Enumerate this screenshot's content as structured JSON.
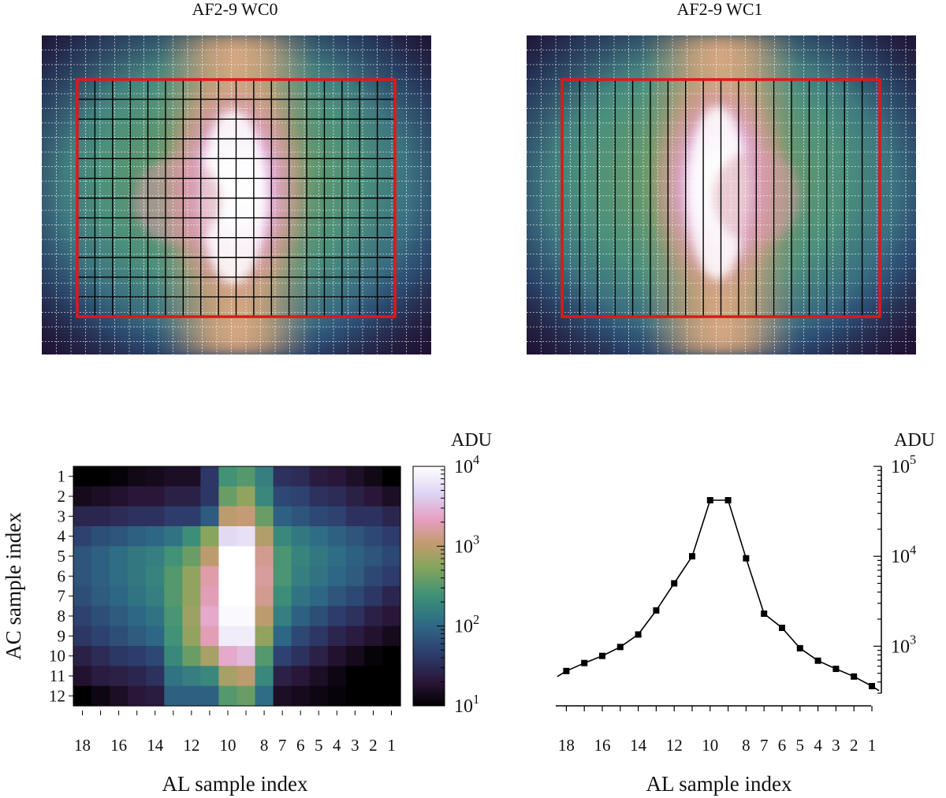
{
  "panels": {
    "top_left_title": "AF2-9 WC0",
    "top_right_title": "AF2-9 WC1"
  },
  "colors": {
    "window_outline": "#e01818",
    "grid_line": "#000000",
    "pixel_grid": "#ffffff",
    "line_series": "#000000"
  },
  "chart_data": [
    {
      "type": "heatmap",
      "title": "AF2-9 WC0",
      "description_key": "top-left smooth image with 18x12 sample grid",
      "grid": {
        "columns": 18,
        "rows": 12
      },
      "window_shape": "2D"
    },
    {
      "type": "heatmap",
      "title": "AF2-9 WC1",
      "description_key": "top-right smooth image with 18 AL-binned columns",
      "grid": {
        "columns": 18,
        "rows": 1
      },
      "window_shape": "1D"
    },
    {
      "type": "heatmap",
      "xlabel": "AL sample index",
      "ylabel": "AC sample index",
      "x_ticks": [
        "18",
        "16",
        "14",
        "12",
        "10",
        "8",
        "7",
        "6",
        "5",
        "4",
        "3",
        "2",
        "1"
      ],
      "x_tick_positions": [
        18,
        16,
        14,
        12,
        10,
        8,
        7,
        6,
        5,
        4,
        3,
        2,
        1
      ],
      "y_ticks": [
        "1",
        "2",
        "3",
        "4",
        "5",
        "6",
        "7",
        "8",
        "9",
        "10",
        "11",
        "12"
      ],
      "colorbar": {
        "label": "ADU",
        "scale": "log",
        "range": [
          10,
          10000
        ],
        "ticks": [
          {
            "base": "10",
            "exp": "1",
            "value": 10
          },
          {
            "base": "10",
            "exp": "2",
            "value": 100
          },
          {
            "base": "10",
            "exp": "3",
            "value": 1000
          },
          {
            "base": "10",
            "exp": "4",
            "value": 10000
          }
        ]
      },
      "al_indices": [
        18,
        17,
        16,
        15,
        14,
        13,
        12,
        11,
        10,
        9,
        8,
        7,
        6,
        5,
        4,
        3,
        2,
        1
      ],
      "values_log10": [
        [
          1.0,
          1.0,
          1.05,
          1.12,
          1.15,
          1.2,
          1.2,
          1.6,
          2.4,
          2.5,
          2.2,
          1.55,
          1.5,
          1.35,
          1.3,
          1.22,
          1.12,
          1.0
        ],
        [
          1.15,
          1.2,
          1.25,
          1.3,
          1.3,
          1.4,
          1.4,
          1.6,
          2.6,
          2.8,
          2.3,
          1.75,
          1.7,
          1.55,
          1.5,
          1.4,
          1.3,
          1.2
        ],
        [
          1.45,
          1.45,
          1.5,
          1.55,
          1.55,
          1.65,
          1.65,
          1.9,
          3.0,
          3.05,
          2.6,
          1.95,
          1.85,
          1.75,
          1.7,
          1.55,
          1.55,
          1.45
        ],
        [
          1.7,
          1.8,
          1.85,
          1.95,
          2.0,
          2.1,
          2.35,
          2.75,
          3.7,
          3.75,
          2.95,
          2.3,
          2.15,
          2.05,
          1.95,
          1.85,
          1.75,
          1.65
        ],
        [
          1.85,
          1.95,
          2.05,
          2.15,
          2.2,
          2.4,
          2.6,
          3.0,
          4.0,
          4.0,
          3.15,
          2.45,
          2.25,
          2.15,
          2.05,
          1.95,
          1.85,
          1.75
        ],
        [
          1.85,
          1.95,
          2.05,
          2.15,
          2.25,
          2.5,
          2.8,
          3.25,
          4.0,
          4.0,
          3.2,
          2.45,
          2.2,
          2.1,
          2.0,
          1.9,
          1.75,
          1.65
        ],
        [
          1.8,
          1.9,
          2.0,
          2.1,
          2.2,
          2.5,
          2.8,
          3.3,
          4.0,
          4.0,
          3.15,
          2.35,
          2.1,
          2.0,
          1.85,
          1.75,
          1.6,
          1.45
        ],
        [
          1.7,
          1.8,
          1.9,
          2.0,
          2.1,
          2.45,
          2.85,
          3.4,
          3.95,
          3.95,
          3.0,
          2.2,
          1.95,
          1.8,
          1.65,
          1.55,
          1.4,
          1.3
        ],
        [
          1.6,
          1.7,
          1.8,
          1.9,
          2.0,
          2.4,
          2.8,
          3.3,
          3.85,
          3.85,
          2.8,
          2.0,
          1.75,
          1.6,
          1.45,
          1.35,
          1.25,
          1.15
        ],
        [
          1.4,
          1.5,
          1.6,
          1.65,
          1.75,
          2.3,
          2.6,
          2.9,
          3.4,
          3.5,
          2.5,
          1.7,
          1.55,
          1.4,
          1.25,
          1.15,
          1.05,
          1.0
        ],
        [
          1.25,
          1.35,
          1.4,
          1.45,
          1.55,
          2.1,
          2.2,
          2.3,
          2.9,
          3.0,
          2.3,
          1.4,
          1.3,
          1.2,
          1.1,
          1.0,
          1.0,
          1.0
        ],
        [
          1.0,
          1.1,
          1.2,
          1.3,
          1.35,
          1.95,
          1.95,
          1.95,
          2.5,
          2.6,
          2.05,
          1.2,
          1.15,
          1.1,
          1.05,
          1.0,
          1.0,
          1.0
        ]
      ]
    },
    {
      "type": "line",
      "xlabel": "AL sample index",
      "ylabel": "ADU",
      "y_scale": "log",
      "ylim": [
        300,
        100000
      ],
      "x_ticks": [
        "18",
        "16",
        "14",
        "12",
        "10",
        "8",
        "7",
        "6",
        "5",
        "4",
        "3",
        "2",
        "1"
      ],
      "x_tick_positions": [
        18,
        16,
        14,
        12,
        10,
        8,
        7,
        6,
        5,
        4,
        3,
        2,
        1
      ],
      "y_ticks": [
        {
          "base": "10",
          "exp": "3",
          "value": 1000
        },
        {
          "base": "10",
          "exp": "4",
          "value": 10000
        },
        {
          "base": "10",
          "exp": "5",
          "value": 100000
        }
      ],
      "x": [
        18,
        17,
        16,
        15,
        14,
        13,
        12,
        11,
        10,
        9,
        8,
        7,
        6,
        5,
        4,
        3,
        2,
        1
      ],
      "values": [
        530,
        650,
        780,
        980,
        1350,
        2500,
        5000,
        10000,
        42000,
        42000,
        9500,
        2300,
        1600,
        950,
        690,
        560,
        460,
        360
      ],
      "line_start_x": 18.5,
      "line_start_value": 460,
      "line_end_x": 0.6,
      "line_end_value": 320
    }
  ]
}
